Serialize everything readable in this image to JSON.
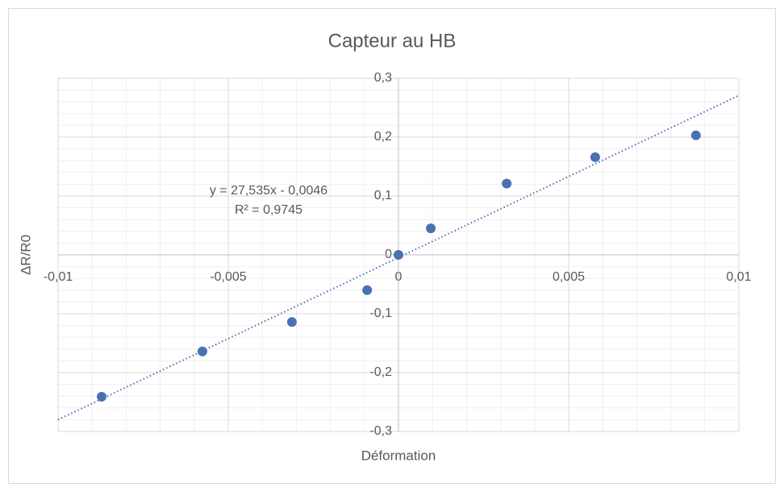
{
  "chart_data": {
    "type": "scatter",
    "title": "Capteur au HB",
    "x_label": "Déformation",
    "y_label": "ΔR/R0",
    "x": [
      -0.00872,
      -0.00576,
      -0.00313,
      -0.00092,
      0,
      0.00095,
      0.00318,
      0.00578,
      0.00874
    ],
    "values": [
      -0.241,
      -0.164,
      -0.114,
      -0.06,
      0,
      0.045,
      0.121,
      0.166,
      0.203
    ],
    "color": "#4a72b2",
    "xlim": [
      -0.01,
      0.01
    ],
    "xticks": [
      {
        "value": -0.01,
        "label": "-0,01"
      },
      {
        "value": -0.005,
        "label": "-0,005"
      },
      0,
      {
        "value": 0.005,
        "label": "0,005"
      },
      {
        "value": 0.01,
        "label": "0,01"
      }
    ],
    "ylim": [
      -0.3,
      0.3
    ],
    "yticks": [
      {
        "value": -0.3,
        "label": "-0,3"
      },
      {
        "value": -0.2,
        "label": "-0,2"
      },
      {
        "value": -0.1,
        "label": "-0,1"
      },
      0,
      {
        "value": 0.1,
        "label": "0,1"
      },
      {
        "value": 0.2,
        "label": "0,2"
      },
      {
        "value": 0.3,
        "label": "0,3"
      }
    ],
    "grid": true,
    "minor_grid": true,
    "trendline": {
      "equation": "y = 27,535x - 0,0046",
      "r_squared": "R² = 0,9745",
      "slope": 27.535,
      "intercept": -0.0046
    }
  }
}
